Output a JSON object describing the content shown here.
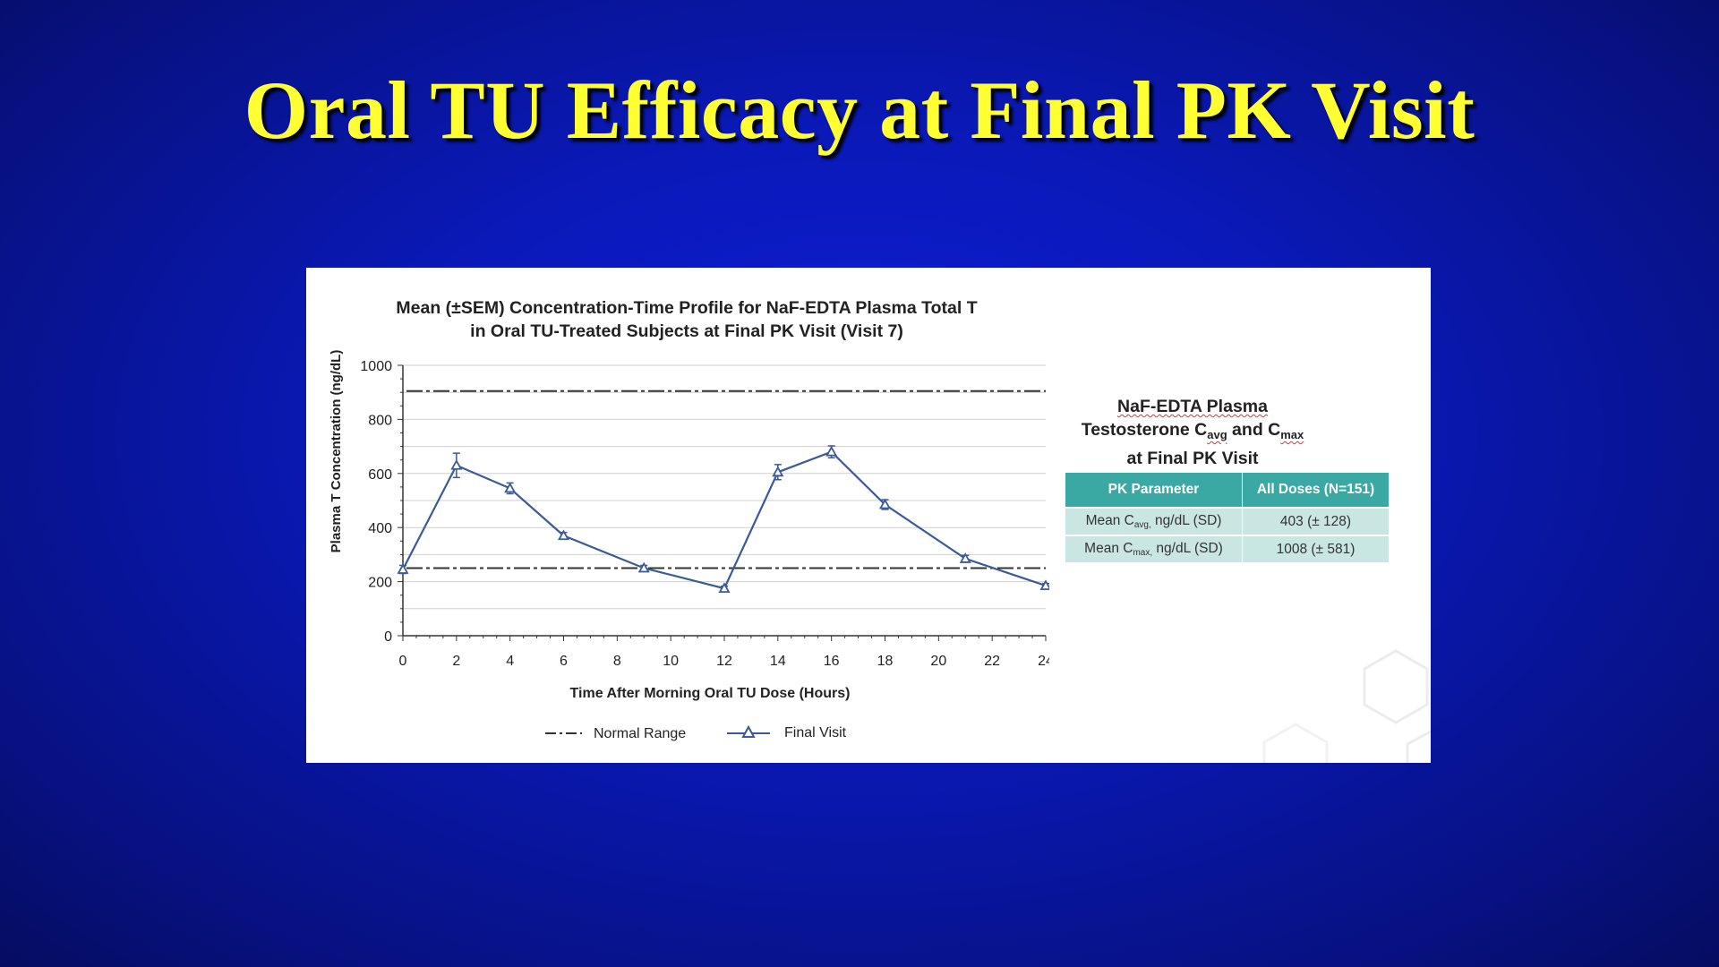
{
  "slide": {
    "title": "Oral TU Efficacy at Final PK Visit"
  },
  "chart_data": {
    "type": "line",
    "title_line1": "Mean (±SEM) Concentration-Time Profile for NaF-EDTA Plasma Total T",
    "title_line2": "in Oral TU-Treated Subjects at Final PK Visit (Visit 7)",
    "xlabel": "Time After Morning Oral TU Dose (Hours)",
    "ylabel": "Plasma T Concentration (ng/dL)",
    "xlim": [
      0,
      24
    ],
    "ylim": [
      0,
      1000
    ],
    "xticks": [
      0,
      2,
      4,
      6,
      8,
      10,
      12,
      14,
      16,
      18,
      20,
      22,
      24
    ],
    "yticks": [
      0,
      200,
      400,
      600,
      800,
      1000
    ],
    "grid": "horizontal",
    "legend_position": "bottom",
    "series": [
      {
        "name": "Final Visit",
        "color": "#3a5a9a",
        "marker": "triangle",
        "x": [
          0,
          2,
          4,
          6,
          9,
          12,
          14,
          16,
          18,
          21,
          24
        ],
        "y": [
          245,
          630,
          545,
          370,
          250,
          175,
          605,
          680,
          485,
          285,
          185
        ],
        "sem": [
          15,
          45,
          20,
          12,
          10,
          8,
          28,
          22,
          18,
          12,
          8
        ]
      }
    ],
    "reference_lines": [
      {
        "name": "Normal Range",
        "style": "dash-dot",
        "color": "#333333",
        "y": [
          250,
          905
        ]
      }
    ],
    "legend": [
      {
        "label": "Normal Range",
        "style": "dashed"
      },
      {
        "label": "Final Visit",
        "style": "line-triangle"
      }
    ]
  },
  "side_table": {
    "title_line1": "NaF-EDTA Plasma",
    "title_line2_prefix": "Testosterone C",
    "title_line2_sub1": "avg",
    "title_line2_mid": " and C",
    "title_line2_sub2": "max",
    "title_line3": "at Final PK Visit",
    "headers": [
      "PK Parameter",
      "All Doses (N=151)"
    ],
    "rows": [
      {
        "param_prefix": "Mean C",
        "param_sub": "avg,",
        "param_suffix": " ng/dL (SD)",
        "value": "403 (± 128)"
      },
      {
        "param_prefix": "Mean C",
        "param_sub": "max,",
        "param_suffix": " ng/dL (SD)",
        "value": "1008 (± 581)"
      }
    ]
  }
}
